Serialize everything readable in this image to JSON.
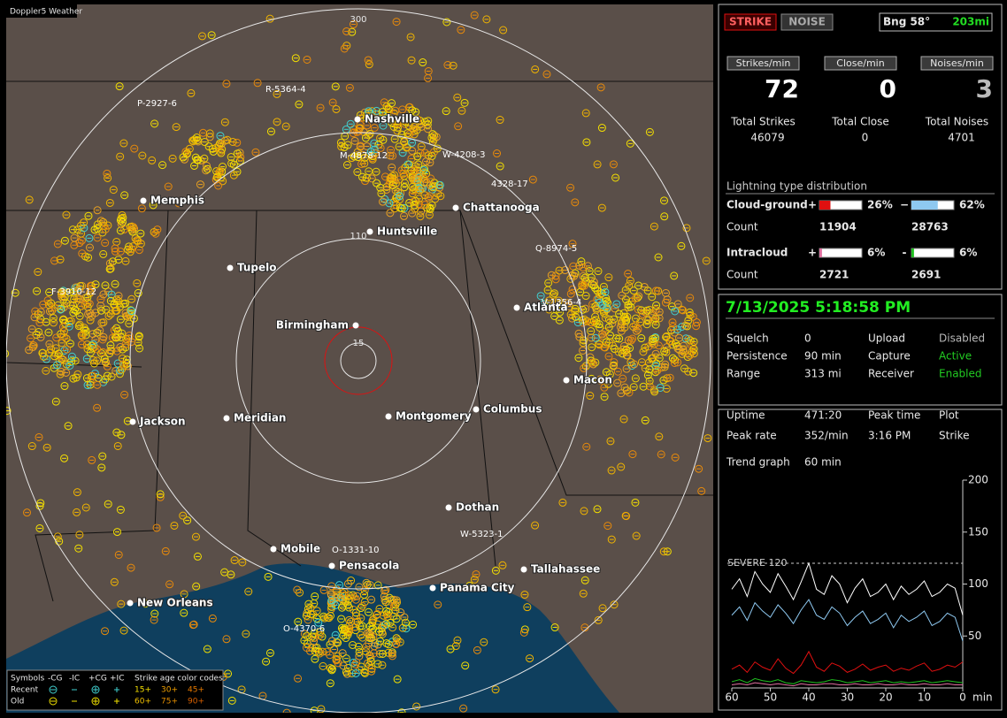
{
  "app_title": "Doppler5 Weather",
  "map": {
    "range_labels": [
      "300",
      "110",
      "15"
    ],
    "cities": [
      "Nashville",
      "Memphis",
      "Chattanooga",
      "Huntsville",
      "Tupelo",
      "Birmingham",
      "Atlanta",
      "Macon",
      "Jackson",
      "Meridian",
      "Montgomery",
      "Columbus",
      "Dothan",
      "Mobile",
      "Pensacola",
      "Tallahassee",
      "Panama City",
      "New Orleans"
    ],
    "storm_labels": [
      "P-2927-6",
      "R-5364-4",
      "M-4878-12",
      "W-4208-3",
      "4328-17",
      "Q-8974-5",
      "F-3910-12",
      "V-1356-4",
      "O-1331-10",
      "W-5323-1",
      "O-4370-6"
    ],
    "legend": {
      "header": [
        "Symbols",
        "-CG",
        "-IC",
        "+CG",
        "+IC",
        "Strike age color codes"
      ],
      "rows": [
        {
          "label": "Recent",
          "ages": [
            "15+",
            "30+",
            "45+"
          ]
        },
        {
          "label": "Old",
          "ages": [
            "60+",
            "75+",
            "90+"
          ]
        }
      ]
    }
  },
  "status": {
    "strike": "STRIKE",
    "noise": "NOISE",
    "bearing": "Bng 58°",
    "distance": "203mi"
  },
  "counters": [
    {
      "label": "Strikes/min",
      "value": 72,
      "total_label": "Total Strikes",
      "total": 46079
    },
    {
      "label": "Close/min",
      "value": 0,
      "total_label": "Total Close",
      "total": 0
    },
    {
      "label": "Noises/min",
      "value": 3,
      "total_label": "Total Noises",
      "total": 4701
    }
  ],
  "distribution": {
    "title": "Lightning type distribution",
    "count_label": "Count",
    "groups": [
      {
        "name": "Cloud-ground",
        "parts": [
          {
            "sign": "+",
            "percent": 26,
            "percent_label": "26%",
            "count": 11904,
            "color": "#e01010"
          },
          {
            "sign": "−",
            "percent": 62,
            "percent_label": "62%",
            "count": 28763,
            "color": "#8ec8f0"
          }
        ]
      },
      {
        "name": "Intracloud",
        "parts": [
          {
            "sign": "+",
            "percent": 6,
            "percent_label": "6%",
            "count": 2721,
            "color": "#e070a0"
          },
          {
            "sign": "-",
            "percent": 6,
            "percent_label": "6%",
            "count": 2691,
            "color": "#20c020"
          }
        ]
      }
    ]
  },
  "datetime": "7/13/2025 5:18:58 PM",
  "settings": [
    [
      {
        "text": "Squelch"
      },
      {
        "text": "0"
      },
      {
        "text": "Upload"
      },
      {
        "text": "Disabled",
        "color": "#b8b8b8"
      }
    ],
    [
      {
        "text": "Persistence"
      },
      {
        "text": "90 min"
      },
      {
        "text": "Capture"
      },
      {
        "text": "Active",
        "color": "#22cc22"
      }
    ],
    [
      {
        "text": "Range"
      },
      {
        "text": "313 mi"
      },
      {
        "text": "Receiver"
      },
      {
        "text": "Enabled",
        "color": "#22cc22"
      }
    ]
  ],
  "stats": [
    [
      "Uptime",
      "471:20",
      "Peak time",
      "Plot"
    ],
    [
      "Peak rate",
      "352/min",
      "3:16 PM",
      "Strike"
    ],
    [
      "Trend graph",
      "60 min"
    ]
  ],
  "trend_chart": {
    "type": "line",
    "x_unit": "min",
    "severe": {
      "label": "SEVERE 120",
      "value": 120
    },
    "xlim": [
      60,
      0
    ],
    "xticks": [
      60,
      50,
      40,
      30,
      20,
      10,
      0
    ],
    "ylim": [
      0,
      200
    ],
    "yticks": [
      50,
      100,
      150,
      200
    ],
    "x": [
      60,
      58,
      56,
      54,
      52,
      50,
      48,
      46,
      44,
      42,
      40,
      38,
      36,
      34,
      32,
      30,
      28,
      26,
      24,
      22,
      20,
      18,
      16,
      14,
      12,
      10,
      8,
      6,
      4,
      2,
      0
    ],
    "series": [
      {
        "color": "#ffffff",
        "values": [
          95,
          105,
          88,
          112,
          100,
          92,
          110,
          98,
          85,
          102,
          120,
          95,
          90,
          108,
          100,
          82,
          96,
          105,
          88,
          92,
          100,
          85,
          98,
          90,
          95,
          103,
          88,
          92,
          100,
          96,
          70
        ]
      },
      {
        "color": "#8ec8f0",
        "values": [
          70,
          78,
          65,
          82,
          74,
          68,
          80,
          72,
          62,
          75,
          85,
          70,
          66,
          78,
          72,
          60,
          68,
          74,
          62,
          66,
          72,
          58,
          70,
          64,
          68,
          74,
          60,
          64,
          72,
          68,
          45
        ]
      },
      {
        "color": "#e01010",
        "values": [
          18,
          22,
          15,
          25,
          20,
          17,
          28,
          19,
          14,
          22,
          35,
          20,
          16,
          24,
          21,
          15,
          18,
          23,
          17,
          20,
          22,
          16,
          19,
          17,
          21,
          24,
          16,
          18,
          22,
          20,
          25
        ]
      },
      {
        "color": "#20c020",
        "values": [
          6,
          8,
          5,
          9,
          7,
          6,
          8,
          5,
          4,
          7,
          6,
          5,
          6,
          8,
          7,
          5,
          6,
          7,
          5,
          6,
          7,
          5,
          6,
          5,
          6,
          7,
          5,
          6,
          7,
          6,
          5
        ]
      },
      {
        "color": "#e070a0",
        "values": [
          3,
          4,
          3,
          5,
          4,
          3,
          4,
          3,
          2,
          4,
          3,
          3,
          4,
          4,
          3,
          3,
          4,
          3,
          3,
          4,
          3,
          3,
          4,
          3,
          3,
          4,
          3,
          3,
          4,
          3,
          3
        ]
      }
    ]
  }
}
